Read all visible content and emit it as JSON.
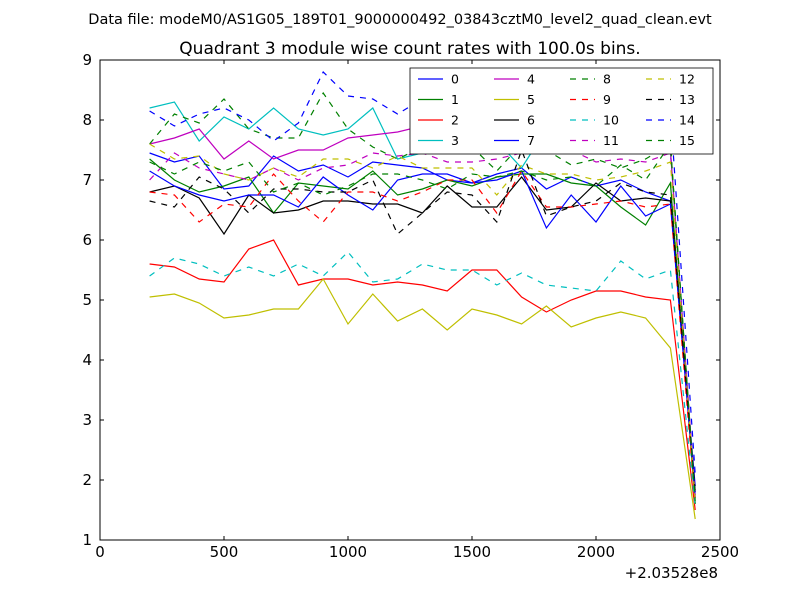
{
  "chart_data": {
    "type": "line",
    "suptitle": "Data file: modeM0/AS1G05_189T01_9000000492_03843cztM0_level2_quad_clean.evt",
    "title": "Quadrant 3 module wise count rates with 100.0s bins.",
    "xlabel": "",
    "ylabel": "",
    "x_offset_label": "+2.03528e8",
    "xlim": [
      0,
      2500
    ],
    "ylim": [
      1,
      9
    ],
    "xticks": [
      0,
      500,
      1000,
      1500,
      2000,
      2500
    ],
    "yticks": [
      1,
      2,
      3,
      4,
      5,
      6,
      7,
      8,
      9
    ],
    "grid": false,
    "legend_position": "top-right",
    "x": [
      200,
      300,
      400,
      500,
      600,
      700,
      800,
      900,
      1000,
      1100,
      1200,
      1300,
      1400,
      1500,
      1600,
      1700,
      1800,
      1900,
      2000,
      2100,
      2200,
      2300,
      2400
    ],
    "series": [
      {
        "name": "0",
        "color": "#0000ff",
        "dash": "solid",
        "values": [
          7.45,
          7.3,
          7.4,
          6.85,
          6.9,
          7.4,
          7.15,
          7.25,
          7.05,
          7.3,
          7.25,
          7.2,
          7.0,
          6.95,
          7.1,
          7.2,
          6.85,
          7.05,
          6.9,
          7.0,
          6.8,
          6.65,
          1.9
        ]
      },
      {
        "name": "1",
        "color": "#008000",
        "dash": "solid",
        "values": [
          7.35,
          7.0,
          6.8,
          6.9,
          7.05,
          6.45,
          6.95,
          6.9,
          6.85,
          7.15,
          6.75,
          6.85,
          7.0,
          6.9,
          7.05,
          7.1,
          7.1,
          6.95,
          6.9,
          6.55,
          6.25,
          6.95,
          1.6
        ]
      },
      {
        "name": "2",
        "color": "#ff0000",
        "dash": "solid",
        "values": [
          5.6,
          5.55,
          5.35,
          5.3,
          5.85,
          6.0,
          5.25,
          5.35,
          5.35,
          5.25,
          5.3,
          5.25,
          5.15,
          5.5,
          5.5,
          5.05,
          4.8,
          5.0,
          5.15,
          5.15,
          5.05,
          5.0,
          1.5
        ]
      },
      {
        "name": "3",
        "color": "#00bfbf",
        "dash": "solid",
        "values": [
          8.2,
          8.3,
          7.65,
          8.05,
          7.85,
          8.2,
          7.85,
          7.75,
          7.85,
          8.2,
          7.35,
          7.45,
          7.9,
          7.8,
          7.65,
          7.2,
          7.85,
          7.85,
          7.8,
          7.55,
          7.5,
          7.5,
          1.7
        ]
      },
      {
        "name": "4",
        "color": "#bf00bf",
        "dash": "solid",
        "values": [
          7.6,
          7.7,
          7.85,
          7.35,
          7.65,
          7.35,
          7.5,
          7.5,
          7.7,
          7.75,
          7.8,
          7.9,
          7.7,
          7.6,
          7.5,
          7.45,
          7.55,
          7.5,
          7.5,
          7.55,
          7.45,
          7.5,
          1.7
        ]
      },
      {
        "name": "5",
        "color": "#bfbf00",
        "dash": "solid",
        "values": [
          5.05,
          5.1,
          4.95,
          4.7,
          4.75,
          4.85,
          4.85,
          5.35,
          4.6,
          5.1,
          4.65,
          4.85,
          4.5,
          4.85,
          4.75,
          4.6,
          4.9,
          4.55,
          4.7,
          4.8,
          4.7,
          4.2,
          1.35
        ]
      },
      {
        "name": "6",
        "color": "#000000",
        "dash": "solid",
        "values": [
          6.8,
          6.9,
          6.7,
          6.1,
          6.75,
          6.45,
          6.5,
          6.65,
          6.65,
          6.6,
          6.6,
          6.45,
          6.9,
          6.55,
          6.55,
          7.05,
          6.5,
          6.55,
          6.95,
          6.65,
          6.7,
          6.65,
          1.8
        ]
      },
      {
        "name": "7",
        "color": "#0000ff",
        "dash": "solid",
        "values": [
          7.15,
          6.9,
          6.75,
          6.65,
          6.75,
          6.75,
          6.55,
          7.05,
          6.75,
          6.5,
          7.0,
          7.1,
          7.1,
          6.95,
          7.0,
          7.15,
          6.2,
          6.75,
          6.3,
          6.9,
          6.4,
          6.6,
          1.75
        ]
      },
      {
        "name": "8",
        "color": "#008000",
        "dash": "dashed",
        "values": [
          7.6,
          8.1,
          7.95,
          8.35,
          7.85,
          7.7,
          7.7,
          8.45,
          7.85,
          7.55,
          7.35,
          7.55,
          7.6,
          7.55,
          7.15,
          7.6,
          7.5,
          7.25,
          7.35,
          7.2,
          7.35,
          7.6,
          1.6
        ]
      },
      {
        "name": "9",
        "color": "#ff0000",
        "dash": "dashed",
        "values": [
          6.8,
          6.75,
          6.3,
          6.6,
          6.55,
          7.1,
          6.65,
          6.3,
          6.8,
          6.8,
          6.65,
          6.8,
          7.0,
          7.0,
          6.45,
          7.15,
          6.55,
          6.55,
          6.6,
          6.65,
          6.55,
          6.6,
          1.6
        ]
      },
      {
        "name": "10",
        "color": "#00bfbf",
        "dash": "dashed",
        "values": [
          5.4,
          5.7,
          5.6,
          5.4,
          5.55,
          5.4,
          5.6,
          5.4,
          5.8,
          5.3,
          5.35,
          5.6,
          5.5,
          5.5,
          5.25,
          5.45,
          5.25,
          5.2,
          5.15,
          5.65,
          5.35,
          5.5,
          1.55
        ]
      },
      {
        "name": "11",
        "color": "#bf00bf",
        "dash": "dashed",
        "values": [
          7.0,
          7.45,
          7.2,
          7.1,
          7.0,
          7.2,
          7.0,
          7.2,
          7.25,
          7.45,
          7.4,
          7.45,
          7.3,
          7.3,
          7.35,
          7.45,
          7.6,
          7.5,
          7.3,
          7.35,
          7.3,
          7.45,
          1.7
        ]
      },
      {
        "name": "12",
        "color": "#bfbf00",
        "dash": "dashed",
        "values": [
          7.6,
          7.35,
          7.4,
          7.1,
          7.0,
          7.2,
          7.05,
          7.35,
          7.35,
          7.2,
          7.4,
          7.2,
          7.2,
          7.2,
          6.75,
          7.25,
          7.1,
          7.1,
          7.0,
          7.05,
          7.15,
          7.3,
          1.65
        ]
      },
      {
        "name": "13",
        "color": "#000000",
        "dash": "dashed",
        "values": [
          6.65,
          6.55,
          7.05,
          6.85,
          6.45,
          6.85,
          6.85,
          6.8,
          6.8,
          7.0,
          6.1,
          6.45,
          6.8,
          6.75,
          6.3,
          7.5,
          6.4,
          6.55,
          6.65,
          6.95,
          6.8,
          6.75,
          1.8
        ]
      },
      {
        "name": "14",
        "color": "#0000ff",
        "dash": "dashed",
        "values": [
          8.15,
          7.9,
          8.1,
          8.2,
          8.0,
          7.65,
          7.95,
          8.8,
          8.4,
          8.35,
          8.1,
          8.35,
          8.4,
          8.35,
          8.35,
          8.15,
          8.45,
          8.15,
          8.2,
          8.0,
          8.2,
          8.15,
          2.1
        ]
      },
      {
        "name": "15",
        "color": "#008000",
        "dash": "dashed",
        "values": [
          7.3,
          7.1,
          7.3,
          7.15,
          7.3,
          6.8,
          6.95,
          6.75,
          6.9,
          7.1,
          7.1,
          7.0,
          6.85,
          7.1,
          7.05,
          7.15,
          7.0,
          7.05,
          6.9,
          7.25,
          7.0,
          7.6,
          1.65
        ]
      }
    ]
  }
}
